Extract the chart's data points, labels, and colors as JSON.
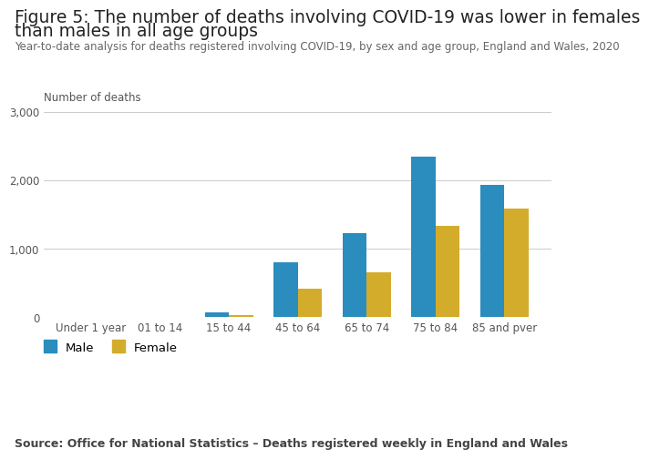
{
  "title_line1": "Figure 5: The number of deaths involving COVID-19 was lower in females",
  "title_line2": "than males in all age groups",
  "subtitle": "Year-to-date analysis for deaths registered involving COVID-19, by sex and age group, England and Wales, 2020",
  "ylabel": "Number of deaths",
  "source": "Source: Office for National Statistics – Deaths registered weekly in England and Wales",
  "categories": [
    "Under 1 year",
    "01 to 14",
    "15 to 44",
    "45 to 64",
    "65 to 74",
    "75 to 84",
    "85 and pver"
  ],
  "male_values": [
    2,
    3,
    70,
    800,
    1230,
    2340,
    1930
  ],
  "female_values": [
    1,
    2,
    30,
    420,
    650,
    1340,
    1580
  ],
  "male_color": "#2b8cbe",
  "female_color": "#d4ac2b",
  "ylim": [
    0,
    3000
  ],
  "yticks": [
    0,
    1000,
    2000,
    3000
  ],
  "background_color": "#ffffff",
  "bar_width": 0.35,
  "title_fontsize": 13.5,
  "subtitle_fontsize": 8.5,
  "source_fontsize": 9,
  "ylabel_fontsize": 8.5,
  "tick_fontsize": 8.5,
  "legend_fontsize": 9.5
}
